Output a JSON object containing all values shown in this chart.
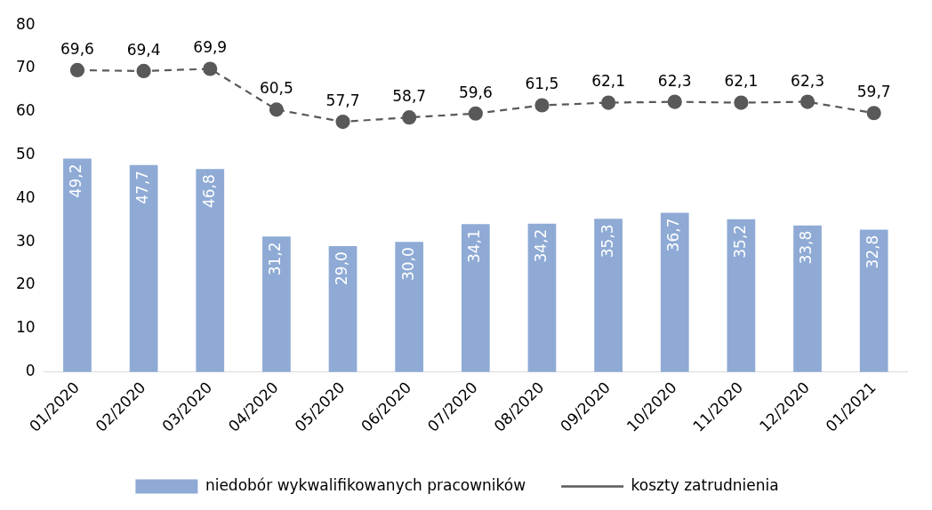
{
  "chart_data": {
    "type": "bar",
    "categories": [
      "01/2020",
      "02/2020",
      "03/2020",
      "04/2020",
      "05/2020",
      "06/2020",
      "07/2020",
      "08/2020",
      "09/2020",
      "10/2020",
      "11/2020",
      "12/2020",
      "01/2021"
    ],
    "series": [
      {
        "name": "niedobór wykwalifikowanych pracowników",
        "type": "bar",
        "color": "#8eaad5",
        "values": [
          49.2,
          47.7,
          46.8,
          31.2,
          29.0,
          30.0,
          34.1,
          34.2,
          35.3,
          36.7,
          35.2,
          33.8,
          32.8
        ],
        "value_labels": [
          "49,2",
          "47,7",
          "46,8",
          "31,2",
          "29,0",
          "30,0",
          "34,1",
          "34,2",
          "35,3",
          "36,7",
          "35,2",
          "33,8",
          "32,8"
        ]
      },
      {
        "name": "koszty zatrudnienia",
        "type": "line",
        "color": "#595959",
        "line_style": "dashed",
        "marker": "circle",
        "values": [
          69.6,
          69.4,
          69.9,
          60.5,
          57.7,
          58.7,
          59.6,
          61.5,
          62.1,
          62.3,
          62.1,
          62.3,
          59.7
        ],
        "value_labels": [
          "69,6",
          "69,4",
          "69,9",
          "60,5",
          "57,7",
          "58,7",
          "59,6",
          "61,5",
          "62,1",
          "62,3",
          "62,1",
          "62,3",
          "59,7"
        ]
      }
    ],
    "ylim": [
      0,
      80
    ],
    "yticks": [
      0,
      10,
      20,
      30,
      40,
      50,
      60,
      70,
      80
    ],
    "grid": false,
    "legend": "bottom"
  }
}
